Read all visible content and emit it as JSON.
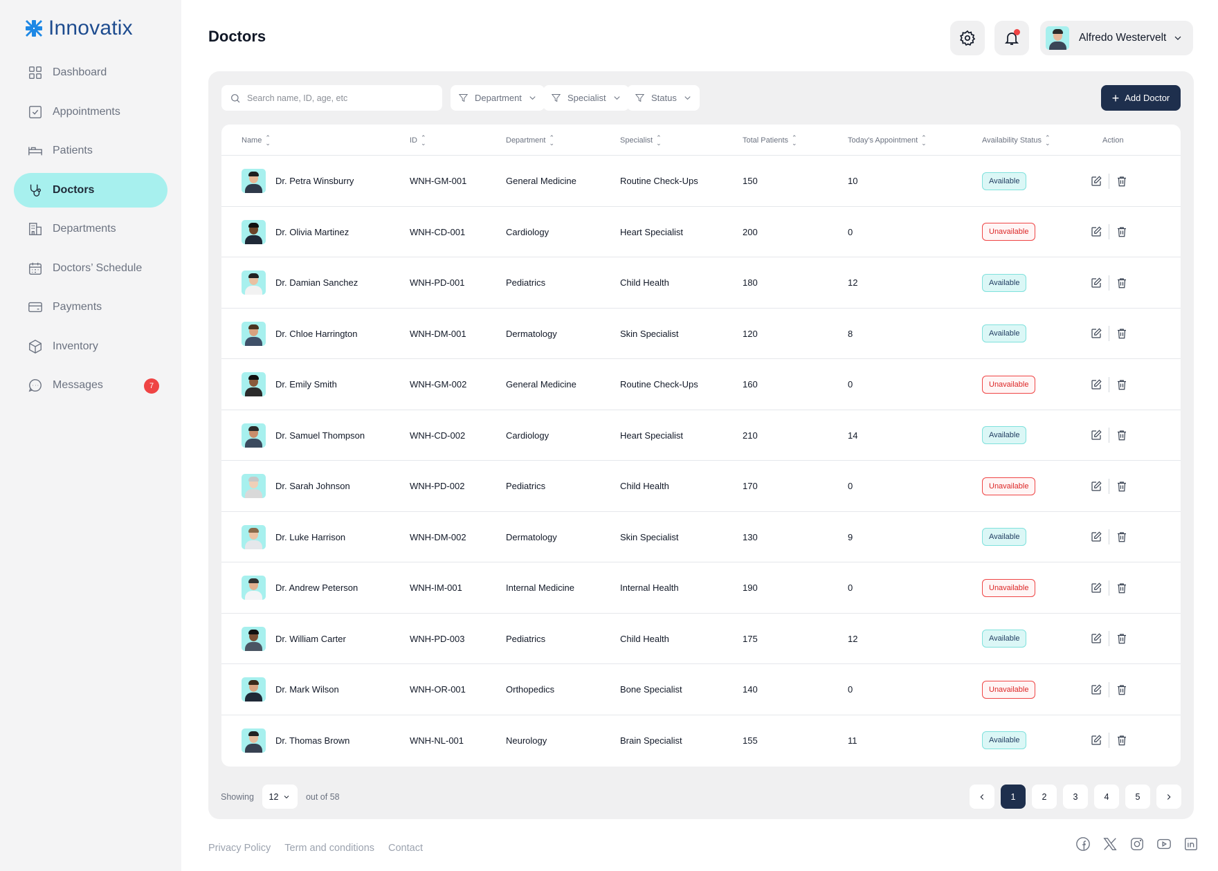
{
  "app": {
    "name": "Innovatix"
  },
  "sidebar": {
    "items": [
      {
        "label": "Dashboard",
        "icon": "grid-icon",
        "active": false
      },
      {
        "label": "Appointments",
        "icon": "check-square-icon",
        "active": false
      },
      {
        "label": "Patients",
        "icon": "bed-icon",
        "active": false
      },
      {
        "label": "Doctors",
        "icon": "stethoscope-icon",
        "active": true
      },
      {
        "label": "Departments",
        "icon": "building-icon",
        "active": false
      },
      {
        "label": "Doctors’ Schedule",
        "icon": "calendar-icon",
        "active": false
      },
      {
        "label": "Payments",
        "icon": "card-icon",
        "active": false
      },
      {
        "label": "Inventory",
        "icon": "box-icon",
        "active": false
      },
      {
        "label": "Messages",
        "icon": "chat-icon",
        "active": false,
        "badge": "7"
      }
    ]
  },
  "header": {
    "title": "Doctors",
    "user_name": "Alfredo Westervelt"
  },
  "toolbar": {
    "search_placeholder": "Search name, ID, age, etc",
    "filter_department": "Department",
    "filter_specialist": "Specialist",
    "filter_status": "Status",
    "add_label": "Add Doctor"
  },
  "table": {
    "columns": [
      "Name",
      "ID",
      "Department",
      "Specialist",
      "Total Patients",
      "Today's Appointment",
      "Availability Status",
      "Action"
    ],
    "rows": [
      {
        "name": "Dr. Petra Winsburry",
        "id": "WNH-GM-001",
        "department": "General Medicine",
        "specialist": "Routine Check-Ups",
        "total": "150",
        "today": "10",
        "status": "Available"
      },
      {
        "name": "Dr. Olivia Martinez",
        "id": "WNH-CD-001",
        "department": "Cardiology",
        "specialist": "Heart Specialist",
        "total": "200",
        "today": "0",
        "status": "Unavailable"
      },
      {
        "name": "Dr. Damian Sanchez",
        "id": "WNH-PD-001",
        "department": "Pediatrics",
        "specialist": "Child Health",
        "total": "180",
        "today": "12",
        "status": "Available"
      },
      {
        "name": "Dr. Chloe Harrington",
        "id": "WNH-DM-001",
        "department": "Dermatology",
        "specialist": "Skin Specialist",
        "total": "120",
        "today": "8",
        "status": "Available"
      },
      {
        "name": "Dr. Emily Smith",
        "id": "WNH-GM-002",
        "department": "General Medicine",
        "specialist": "Routine Check-Ups",
        "total": "160",
        "today": "0",
        "status": "Unavailable"
      },
      {
        "name": "Dr. Samuel Thompson",
        "id": "WNH-CD-002",
        "department": "Cardiology",
        "specialist": "Heart Specialist",
        "total": "210",
        "today": "14",
        "status": "Available"
      },
      {
        "name": "Dr. Sarah Johnson",
        "id": "WNH-PD-002",
        "department": "Pediatrics",
        "specialist": "Child Health",
        "total": "170",
        "today": "0",
        "status": "Unavailable"
      },
      {
        "name": "Dr. Luke Harrison",
        "id": "WNH-DM-002",
        "department": "Dermatology",
        "specialist": "Skin Specialist",
        "total": "130",
        "today": "9",
        "status": "Available"
      },
      {
        "name": "Dr. Andrew Peterson",
        "id": "WNH-IM-001",
        "department": "Internal Medicine",
        "specialist": "Internal Health",
        "total": "190",
        "today": "0",
        "status": "Unavailable"
      },
      {
        "name": "Dr. William Carter",
        "id": "WNH-PD-003",
        "department": "Pediatrics",
        "specialist": "Child Health",
        "total": "175",
        "today": "12",
        "status": "Available"
      },
      {
        "name": "Dr. Mark Wilson",
        "id": "WNH-OR-001",
        "department": "Orthopedics",
        "specialist": "Bone Specialist",
        "total": "140",
        "today": "0",
        "status": "Unavailable"
      },
      {
        "name": "Dr. Thomas Brown",
        "id": "WNH-NL-001",
        "department": "Neurology",
        "specialist": "Brain Specialist",
        "total": "155",
        "today": "11",
        "status": "Available"
      }
    ]
  },
  "pagination": {
    "showing_label": "Showing",
    "per_page": "12",
    "out_of_label": "out of 58",
    "pages": [
      "1",
      "2",
      "3",
      "4",
      "5"
    ],
    "current": "1"
  },
  "footer": {
    "links": [
      "Privacy Policy",
      "Term and conditions",
      "Contact"
    ],
    "social": [
      "facebook-icon",
      "x-icon",
      "instagram-icon",
      "youtube-icon",
      "linkedin-icon"
    ]
  },
  "colors": {
    "brand": "#1e4c8f",
    "active_nav": "#a7f0ee",
    "primary_button": "#1e2f4d",
    "available": "#7ee1dc",
    "unavailable": "#ef4444"
  }
}
